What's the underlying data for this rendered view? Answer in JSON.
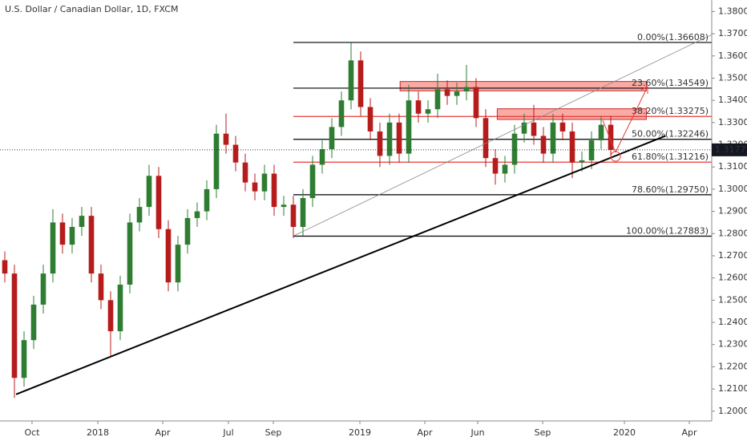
{
  "chart_data": {
    "type": "candlestick",
    "title": "U.S. Dollar / Canadian Dollar, 1D, FXCM",
    "series": [
      {
        "up_color": "#2e7d32",
        "down_color": "#b71c1c",
        "open": [
          1.268,
          1.262,
          1.215,
          1.232,
          1.248,
          1.262,
          1.285,
          1.275,
          1.283,
          1.288,
          1.262,
          1.25,
          1.236,
          1.257,
          1.285,
          1.292,
          1.306,
          1.282,
          1.258,
          1.275,
          1.287,
          1.29,
          1.3,
          1.325,
          1.32,
          1.312,
          1.303,
          1.299,
          1.307,
          1.292,
          1.293,
          1.283,
          1.296,
          1.311,
          1.318,
          1.328,
          1.34,
          1.358,
          1.337,
          1.326,
          1.315,
          1.33,
          1.316,
          1.34,
          1.334,
          1.336,
          1.345,
          1.342,
          1.344,
          1.346,
          1.332,
          1.314,
          1.307,
          1.311,
          1.325,
          1.33,
          1.324,
          1.316,
          1.33,
          1.326,
          1.312,
          1.313,
          1.322,
          1.329
        ],
        "high": [
          1.272,
          1.266,
          1.236,
          1.252,
          1.266,
          1.291,
          1.289,
          1.287,
          1.292,
          1.292,
          1.266,
          1.254,
          1.261,
          1.289,
          1.296,
          1.311,
          1.31,
          1.286,
          1.279,
          1.291,
          1.294,
          1.304,
          1.329,
          1.334,
          1.324,
          1.316,
          1.307,
          1.311,
          1.311,
          1.297,
          1.297,
          1.3,
          1.315,
          1.322,
          1.332,
          1.344,
          1.366,
          1.362,
          1.341,
          1.33,
          1.334,
          1.334,
          1.347,
          1.344,
          1.34,
          1.352,
          1.349,
          1.348,
          1.356,
          1.35,
          1.336,
          1.318,
          1.315,
          1.329,
          1.334,
          1.338,
          1.328,
          1.334,
          1.334,
          1.33,
          1.317,
          1.326,
          1.333,
          1.333
        ],
        "low": [
          1.258,
          1.206,
          1.211,
          1.228,
          1.244,
          1.258,
          1.271,
          1.271,
          1.279,
          1.258,
          1.246,
          1.225,
          1.232,
          1.253,
          1.281,
          1.288,
          1.278,
          1.254,
          1.254,
          1.271,
          1.283,
          1.286,
          1.296,
          1.316,
          1.308,
          1.299,
          1.295,
          1.295,
          1.288,
          1.288,
          1.278,
          1.279,
          1.292,
          1.307,
          1.314,
          1.324,
          1.336,
          1.333,
          1.322,
          1.31,
          1.311,
          1.312,
          1.312,
          1.33,
          1.33,
          1.332,
          1.338,
          1.338,
          1.34,
          1.328,
          1.31,
          1.302,
          1.303,
          1.307,
          1.321,
          1.32,
          1.312,
          1.312,
          1.322,
          1.305,
          1.308,
          1.309,
          1.318,
          1.314
        ],
        "close": [
          1.262,
          1.215,
          1.232,
          1.248,
          1.262,
          1.285,
          1.275,
          1.283,
          1.288,
          1.262,
          1.25,
          1.236,
          1.257,
          1.285,
          1.292,
          1.306,
          1.282,
          1.258,
          1.275,
          1.287,
          1.29,
          1.3,
          1.325,
          1.32,
          1.312,
          1.303,
          1.299,
          1.307,
          1.292,
          1.293,
          1.283,
          1.296,
          1.311,
          1.318,
          1.328,
          1.34,
          1.358,
          1.337,
          1.326,
          1.315,
          1.33,
          1.316,
          1.34,
          1.334,
          1.336,
          1.345,
          1.342,
          1.344,
          1.346,
          1.332,
          1.314,
          1.307,
          1.311,
          1.325,
          1.33,
          1.324,
          1.316,
          1.33,
          1.326,
          1.312,
          1.313,
          1.322,
          1.329,
          1.3177
        ]
      }
    ],
    "xlim": [
      -0.5,
      73.5
    ],
    "xticks": [
      {
        "value": 2.83,
        "label": "Oct"
      },
      {
        "value": 9.67,
        "label": "2018"
      },
      {
        "value": 16.42,
        "label": "Apr"
      },
      {
        "value": 23.25,
        "label": "Jul"
      },
      {
        "value": 27.92,
        "label": "Sep"
      },
      {
        "value": 36.92,
        "label": "2019"
      },
      {
        "value": 43.67,
        "label": "Apr"
      },
      {
        "value": 49.17,
        "label": "Jun"
      },
      {
        "value": 55.92,
        "label": "Sep"
      },
      {
        "value": 64.42,
        "label": "2020"
      },
      {
        "value": 71.17,
        "label": "Apr"
      }
    ],
    "ylim": [
      1.1956,
      1.3852
    ],
    "yticks": [
      {
        "value": 1.2,
        "label": "1.20000"
      },
      {
        "value": 1.21,
        "label": "1.21000"
      },
      {
        "value": 1.22,
        "label": "1.22000"
      },
      {
        "value": 1.23,
        "label": "1.23000"
      },
      {
        "value": 1.24,
        "label": "1.24000"
      },
      {
        "value": 1.25,
        "label": "1.25000"
      },
      {
        "value": 1.26,
        "label": "1.26000"
      },
      {
        "value": 1.27,
        "label": "1.27000"
      },
      {
        "value": 1.28,
        "label": "1.28000"
      },
      {
        "value": 1.29,
        "label": "1.29000"
      },
      {
        "value": 1.3,
        "label": "1.30000"
      },
      {
        "value": 1.31,
        "label": "1.31000"
      },
      {
        "value": 1.32,
        "label": "1.32000"
      },
      {
        "value": 1.33,
        "label": "1.33000"
      },
      {
        "value": 1.34,
        "label": "1.34000"
      },
      {
        "value": 1.35,
        "label": "1.35000"
      },
      {
        "value": 1.36,
        "label": "1.36000"
      },
      {
        "value": 1.37,
        "label": "1.37000"
      },
      {
        "value": 1.38,
        "label": "1.38000"
      }
    ],
    "last_price": 1.31771,
    "fib_start": 30.0,
    "fib_levels": [
      {
        "value": 1.36608,
        "label": "0.00%(1.36608)",
        "color": "#000000"
      },
      {
        "value": 1.34549,
        "label": "23.60%(1.34549)",
        "color": "#000000"
      },
      {
        "value": 1.33275,
        "label": "38.20%(1.33275)",
        "color": "#e53935"
      },
      {
        "value": 1.32246,
        "label": "50.00%(1.32246)",
        "color": "#000000"
      },
      {
        "value": 1.31216,
        "label": "61.80%(1.31216)",
        "color": "#e53935"
      },
      {
        "value": 1.2975,
        "label": "78.60%(1.29750)",
        "color": "#000000"
      },
      {
        "value": 1.27883,
        "label": "100.00%(1.27883)",
        "color": "#000000"
      }
    ],
    "zones": [
      {
        "start": 41.1,
        "end": 66.7,
        "top": 1.3485,
        "bottom": 1.3443
      },
      {
        "start": 51.2,
        "end": 66.7,
        "top": 1.3362,
        "bottom": 1.3314
      }
    ],
    "trendlines": [
      {
        "x": [
          1.17,
          68.7
        ],
        "y": [
          1.2076,
          1.324
        ],
        "color": "#000000",
        "width": 2
      },
      {
        "x": [
          30.1,
          73.5
        ],
        "y": [
          1.2791,
          1.3696
        ],
        "color": "#888888",
        "width": 0.8
      }
    ]
  }
}
